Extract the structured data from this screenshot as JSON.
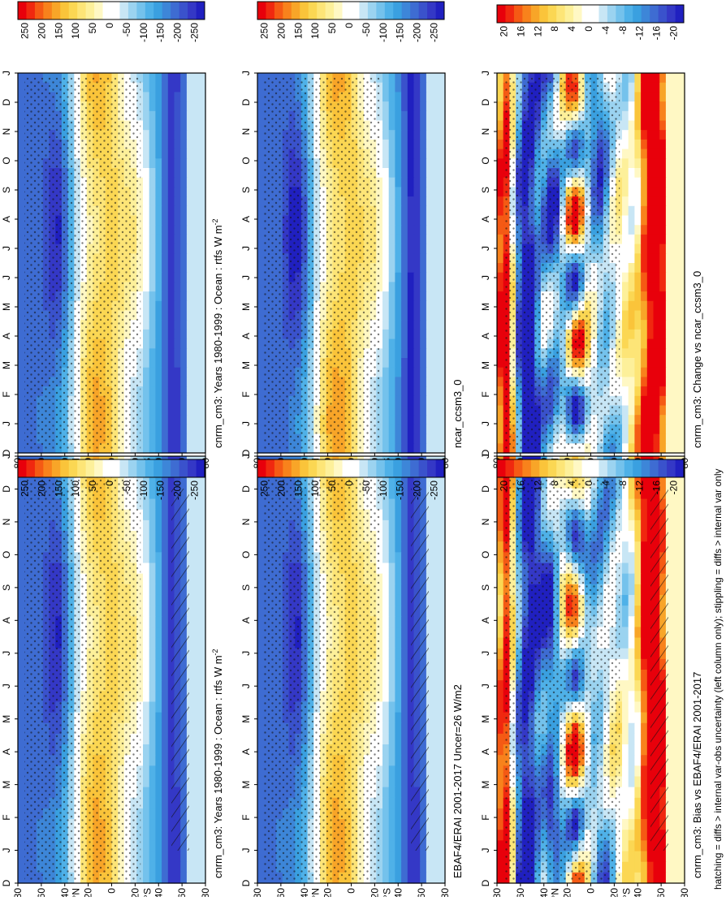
{
  "figure": {
    "footnote": "hatching = diffs > internal var-obs uncertainty (left column only); stippling = diffs > internal var only",
    "months": [
      "D",
      "J",
      "F",
      "M",
      "A",
      "M",
      "J",
      "J",
      "A",
      "S",
      "O",
      "N",
      "D",
      "J"
    ],
    "lat_ticks": [
      "80",
      "60",
      "40",
      "20",
      "0",
      "20",
      "40",
      "60",
      "80"
    ],
    "lat_hemisphere_labels": [
      "°N",
      "°S"
    ],
    "colorbar_abs": {
      "labels": [
        "250",
        "200",
        "150",
        "100",
        "50",
        "0",
        "-50",
        "-100",
        "-150",
        "-200",
        "-250"
      ],
      "colors": [
        "#e8000b",
        "#f0280f",
        "#f55a14",
        "#f8821c",
        "#f8a528",
        "#fac43a",
        "#fbd753",
        "#fde577",
        "#fdf09a",
        "#fff8c4",
        "#ffffff",
        "#ffffff",
        "#c8e6f5",
        "#9bd3f0",
        "#74c2ec",
        "#4fb1e8",
        "#3aa0e0",
        "#3d86d8",
        "#3e6cd2",
        "#3a52cc",
        "#3438c6",
        "#2020c0"
      ]
    },
    "colorbar_diff": {
      "labels": [
        "20",
        "16",
        "12",
        "8",
        "4",
        "0",
        "-4",
        "-8",
        "-12",
        "-16",
        "-20"
      ],
      "colors": [
        "#e8000b",
        "#f0280f",
        "#f55a14",
        "#f8821c",
        "#f8a528",
        "#fac43a",
        "#fbd753",
        "#fde577",
        "#fdf09a",
        "#fff8c4",
        "#ffffff",
        "#ffffff",
        "#c8e6f5",
        "#9bd3f0",
        "#74c2ec",
        "#4fb1e8",
        "#3aa0e0",
        "#3d86d8",
        "#3e6cd2",
        "#3a52cc",
        "#3438c6",
        "#2020c0"
      ]
    },
    "panels": [
      {
        "title": "cnrm_cm3: Years 1980-1999 : Ocean : rtfs W m",
        "title_sup": "-2",
        "colorbar": "abs",
        "kind": "abs",
        "hatch": true
      },
      {
        "title": "cnrm_cm3: Years 1980-1999 : Ocean : rtfs W m",
        "title_sup": "-2",
        "colorbar": "abs",
        "kind": "abs",
        "hatch": false
      },
      {
        "title": "EBAF4/ERAI 2001-2017 Uncer=26 W/m2",
        "title_sup": "",
        "colorbar": "abs",
        "kind": "abs",
        "hatch": true
      },
      {
        "title": "ncar_ccsm3_0",
        "title_sup": "",
        "colorbar": "abs",
        "kind": "abs2",
        "hatch": false
      },
      {
        "title": "cnrm_cm3: Bias vs EBAF4/ERAI 2001-2017",
        "title_sup": "",
        "colorbar": "diff",
        "kind": "diff",
        "hatch": true
      },
      {
        "title": "cnrm_cm3: Change vs ncar_ccsm3_0",
        "title_sup": "",
        "colorbar": "diff",
        "kind": "diff2",
        "hatch": false
      }
    ]
  },
  "chart_data": [
    {
      "type": "heatmap",
      "title": "cnrm_cm3: Years 1980-1999 : Ocean : rtfs W m-2",
      "x": [
        "D",
        "J",
        "F",
        "M",
        "A",
        "M",
        "J",
        "J",
        "A",
        "S",
        "O",
        "N",
        "D",
        "J"
      ],
      "y": [
        "80",
        "60",
        "40",
        "20",
        "0",
        "20",
        "40",
        "60",
        "80"
      ],
      "zlim": [
        -250,
        250
      ],
      "zonal_profile_month_Jan": {
        "lat": [
          80,
          60,
          40,
          20,
          0,
          -20,
          -40,
          -60,
          -80
        ],
        "value": [
          -150,
          -100,
          0,
          125,
          100,
          0,
          25,
          -75,
          -100
        ]
      }
    },
    {
      "type": "heatmap",
      "title": "EBAF4/ERAI 2001-2017 Uncer=26 W/m2",
      "x": [
        "D",
        "J",
        "F",
        "M",
        "A",
        "M",
        "J",
        "J",
        "A",
        "S",
        "O",
        "N",
        "D",
        "J"
      ],
      "y": [
        "80",
        "60",
        "40",
        "20",
        "0",
        "20",
        "40",
        "60",
        "80"
      ],
      "zlim": [
        -250,
        250
      ],
      "zonal_profile_month_Jan": {
        "lat": [
          80,
          60,
          40,
          20,
          0,
          -20,
          -40,
          -60,
          -80
        ],
        "value": [
          -150,
          -100,
          0,
          125,
          100,
          25,
          50,
          -75,
          -125
        ]
      }
    },
    {
      "type": "heatmap",
      "title": "ncar_ccsm3_0",
      "x": [
        "D",
        "J",
        "F",
        "M",
        "A",
        "M",
        "J",
        "J",
        "A",
        "S",
        "O",
        "N",
        "D",
        "J"
      ],
      "y": [
        "80",
        "60",
        "40",
        "20",
        "0",
        "20",
        "40",
        "60",
        "80"
      ],
      "zlim": [
        -250,
        250
      ],
      "zonal_profile_month_Jan": {
        "lat": [
          80,
          60,
          40,
          20,
          0,
          -20,
          -40,
          -60,
          -80
        ],
        "value": [
          -150,
          -100,
          -25,
          125,
          125,
          25,
          50,
          -75,
          -125
        ]
      }
    },
    {
      "type": "heatmap",
      "title": "cnrm_cm3: Bias vs EBAF4/ERAI 2001-2017",
      "x": [
        "D",
        "J",
        "F",
        "M",
        "A",
        "M",
        "J",
        "J",
        "A",
        "S",
        "O",
        "N",
        "D",
        "J"
      ],
      "y": [
        "80",
        "60",
        "40",
        "20",
        "0",
        "20",
        "40",
        "60",
        "80"
      ],
      "zlim": [
        -20,
        20
      ],
      "zonal_profile_month_Jan": {
        "lat": [
          80,
          60,
          40,
          20,
          0,
          -20,
          -40,
          -60,
          -80
        ],
        "value": [
          16,
          -16,
          -20,
          16,
          -12,
          -8,
          -12,
          20,
          -4
        ]
      }
    },
    {
      "type": "heatmap",
      "title": "cnrm_cm3: Change vs ncar_ccsm3_0",
      "x": [
        "D",
        "J",
        "F",
        "M",
        "A",
        "M",
        "J",
        "J",
        "A",
        "S",
        "O",
        "N",
        "D",
        "J"
      ],
      "y": [
        "80",
        "60",
        "40",
        "20",
        "0",
        "20",
        "40",
        "60",
        "80"
      ],
      "zlim": [
        -20,
        20
      ],
      "zonal_profile_month_Jan": {
        "lat": [
          80,
          60,
          40,
          20,
          0,
          -20,
          -40,
          -60,
          -80
        ],
        "value": [
          16,
          -12,
          -20,
          20,
          -16,
          -12,
          -20,
          20,
          0
        ]
      }
    }
  ]
}
